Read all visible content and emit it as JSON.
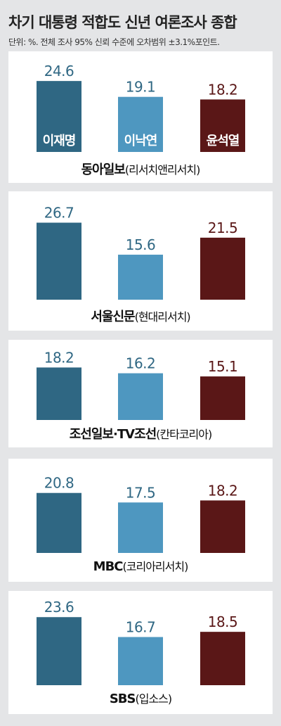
{
  "title": "차기 대통령 적합도 신년 여론조사 종합",
  "unit_note": "단위: %. 전체 조사 95% 신뢰 수준에 오차범위 ±3.1%포인트.",
  "colors": {
    "이재명": "#2f6783",
    "이낙연": "#4e97c0",
    "윤석열": "#5a1717"
  },
  "chart_data": [
    {
      "type": "bar",
      "categories": [
        "이재명",
        "이낙연",
        "윤석열"
      ],
      "values": [
        24.6,
        19.1,
        18.2
      ],
      "value_labels": [
        "24.6",
        "19.1",
        "18.2"
      ],
      "show_category_labels": true,
      "source": "동아일보",
      "pollster": "(리서치앤리서치)"
    },
    {
      "type": "bar",
      "categories": [
        "이재명",
        "이낙연",
        "윤석열"
      ],
      "values": [
        26.7,
        15.6,
        21.5
      ],
      "value_labels": [
        "26.7",
        "15.6",
        "21.5"
      ],
      "show_category_labels": false,
      "source": "서울신문",
      "pollster": "(현대리서치)"
    },
    {
      "type": "bar",
      "categories": [
        "이재명",
        "이낙연",
        "윤석열"
      ],
      "values": [
        18.2,
        16.2,
        15.1
      ],
      "value_labels": [
        "18.2",
        "16.2",
        "15.1"
      ],
      "show_category_labels": false,
      "source": "조선일보·TV조선",
      "pollster": "(칸타코리아)"
    },
    {
      "type": "bar",
      "categories": [
        "이재명",
        "이낙연",
        "윤석열"
      ],
      "values": [
        20.8,
        17.5,
        18.2
      ],
      "value_labels": [
        "20.8",
        "17.5",
        "18.2"
      ],
      "show_category_labels": false,
      "source": "MBC",
      "pollster": "(코리아리서치)"
    },
    {
      "type": "bar",
      "categories": [
        "이재명",
        "이낙연",
        "윤석열"
      ],
      "values": [
        23.6,
        16.7,
        18.5
      ],
      "value_labels": [
        "23.6",
        "16.7",
        "18.5"
      ],
      "show_category_labels": false,
      "source": "SBS",
      "pollster": "(입소스)"
    }
  ]
}
